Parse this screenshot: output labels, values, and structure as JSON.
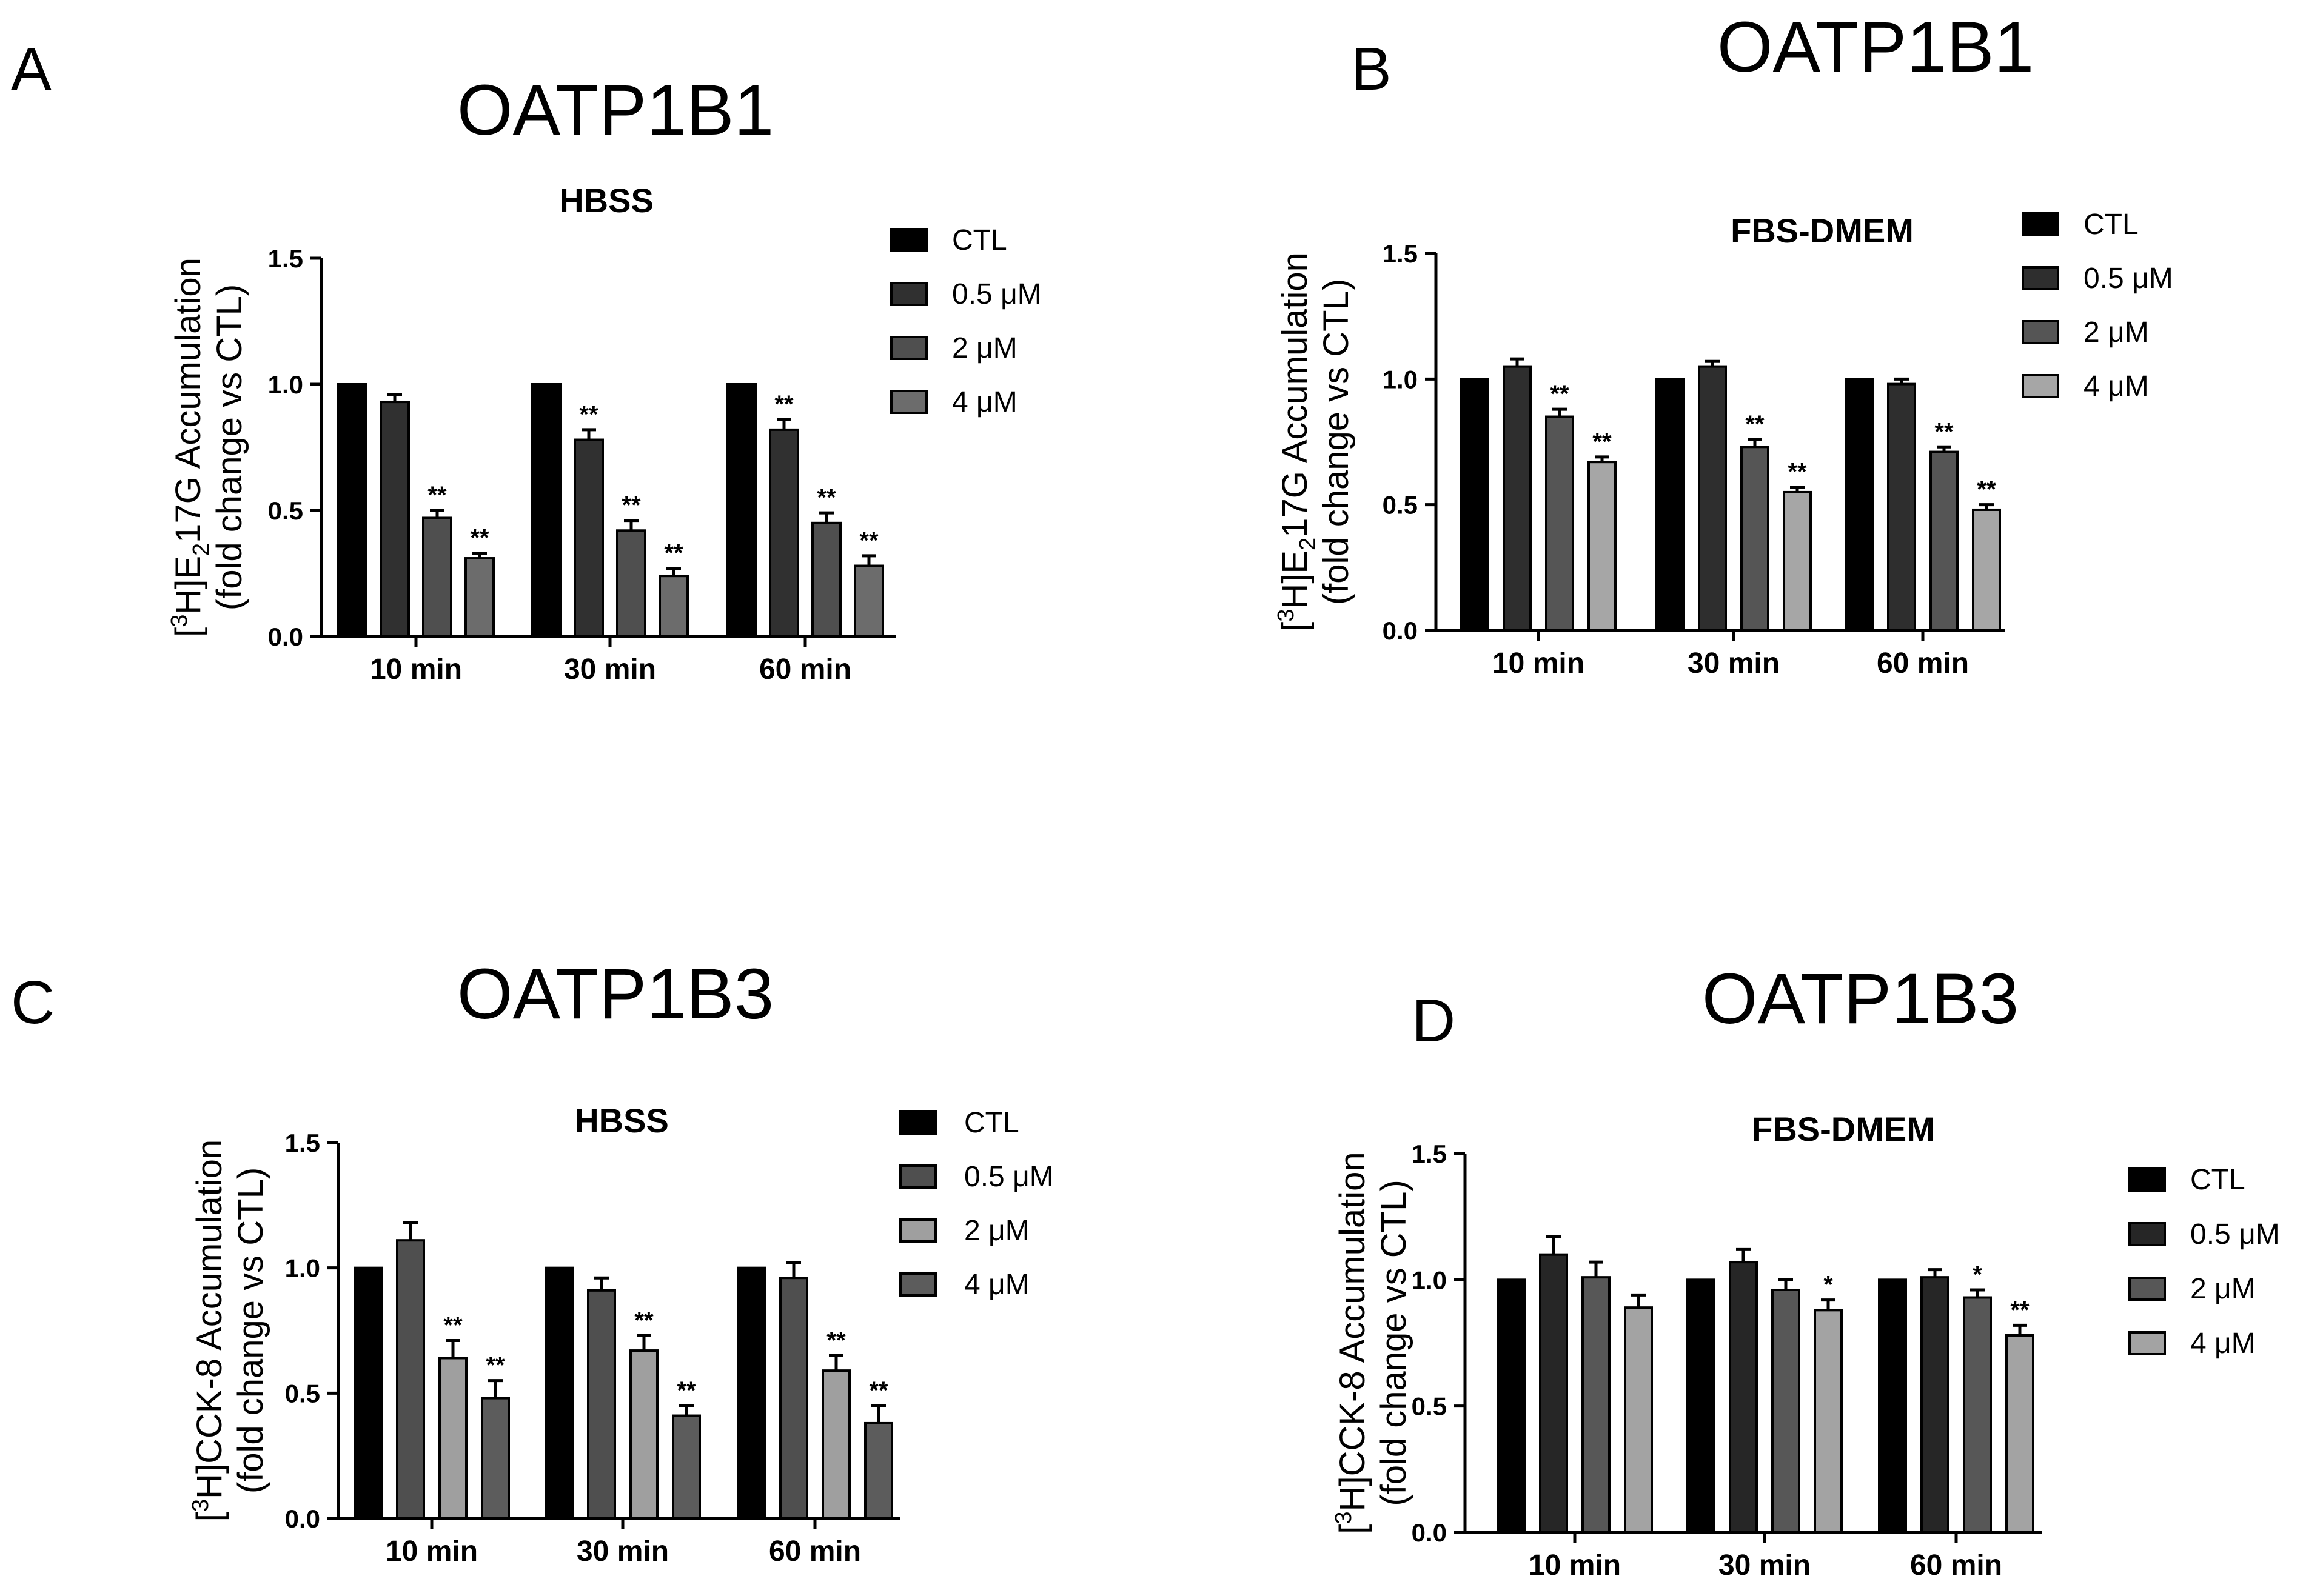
{
  "figure": {
    "unit_symbol": "μ"
  },
  "chart_data": [
    {
      "id": "A",
      "type": "bar",
      "panel_letter": "A",
      "panel_title": "OATP1B1",
      "title": "HBSS",
      "ylabel_line1": "[3H]E217G Accumulation",
      "ylabel_line2": "(fold change vs  CTL)",
      "ylim": [
        0,
        1.5
      ],
      "yticks": [
        "0.0",
        "0.5",
        "1.0",
        "1.5"
      ],
      "categories": [
        "10 min",
        "30 min",
        "60 min"
      ],
      "colors": [
        "#000000",
        "#303030",
        "#4f4f4f",
        "#6c6c6c"
      ],
      "series": [
        {
          "name": "CTL",
          "values": [
            1.0,
            1.0,
            1.0
          ],
          "errors": [
            0,
            0,
            0
          ],
          "sig": [
            "",
            "",
            ""
          ]
        },
        {
          "name": "0.5 μM",
          "values": [
            0.93,
            0.78,
            0.82
          ],
          "errors": [
            0.03,
            0.04,
            0.04
          ],
          "sig": [
            "",
            "**",
            "**"
          ]
        },
        {
          "name": "2 μM",
          "values": [
            0.47,
            0.42,
            0.45
          ],
          "errors": [
            0.03,
            0.04,
            0.04
          ],
          "sig": [
            "**",
            "**",
            "**"
          ]
        },
        {
          "name": "4 μM",
          "values": [
            0.31,
            0.24,
            0.28
          ],
          "errors": [
            0.02,
            0.03,
            0.04
          ],
          "sig": [
            "**",
            "**",
            "**"
          ]
        }
      ]
    },
    {
      "id": "B",
      "type": "bar",
      "panel_letter": "B",
      "panel_title": "OATP1B1",
      "title": "FBS-DMEM",
      "ylabel_line1": "[3H]E217G Accumulation",
      "ylabel_line2": "(fold change vs CTL)",
      "ylim": [
        0,
        1.5
      ],
      "yticks": [
        "0.0",
        "0.5",
        "1.0",
        "1.5"
      ],
      "categories": [
        "10 min",
        "30 min",
        "60 min"
      ],
      "colors": [
        "#000000",
        "#2e2e2e",
        "#555555",
        "#a6a6a6"
      ],
      "series": [
        {
          "name": "CTL",
          "values": [
            1.0,
            1.0,
            1.0
          ],
          "errors": [
            0,
            0,
            0
          ],
          "sig": [
            "",
            "",
            ""
          ]
        },
        {
          "name": "0.5 μM",
          "values": [
            1.05,
            1.05,
            0.98
          ],
          "errors": [
            0.03,
            0.02,
            0.02
          ],
          "sig": [
            "",
            "",
            ""
          ]
        },
        {
          "name": "2 μM",
          "values": [
            0.85,
            0.73,
            0.71
          ],
          "errors": [
            0.03,
            0.03,
            0.02
          ],
          "sig": [
            "**",
            "**",
            "**"
          ]
        },
        {
          "name": "4 μM",
          "values": [
            0.67,
            0.55,
            0.48
          ],
          "errors": [
            0.02,
            0.02,
            0.02
          ],
          "sig": [
            "**",
            "**",
            "**"
          ]
        }
      ]
    },
    {
      "id": "C",
      "type": "bar",
      "panel_letter": "C",
      "panel_title": "OATP1B3",
      "title": "HBSS",
      "ylabel_line1": "[3H]CCK-8 Accumulation",
      "ylabel_line2": "(fold change vs CTL)",
      "ylim": [
        0,
        1.5
      ],
      "yticks": [
        "0.0",
        "0.5",
        "1.0",
        "1.5"
      ],
      "categories": [
        "10 min",
        "30 min",
        "60 min"
      ],
      "colors": [
        "#000000",
        "#4f4f4f",
        "#9f9f9f",
        "#5c5c5c"
      ],
      "series": [
        {
          "name": "CTL",
          "values": [
            1.0,
            1.0,
            1.0
          ],
          "errors": [
            0,
            0,
            0
          ],
          "sig": [
            "",
            "",
            ""
          ]
        },
        {
          "name": "0.5 μM",
          "values": [
            1.11,
            0.91,
            0.96
          ],
          "errors": [
            0.07,
            0.05,
            0.06
          ],
          "sig": [
            "",
            "",
            ""
          ]
        },
        {
          "name": "2 μM",
          "values": [
            0.64,
            0.67,
            0.59
          ],
          "errors": [
            0.07,
            0.06,
            0.06
          ],
          "sig": [
            "**",
            "**",
            "**"
          ]
        },
        {
          "name": "4 μM",
          "values": [
            0.48,
            0.41,
            0.38
          ],
          "errors": [
            0.07,
            0.04,
            0.07
          ],
          "sig": [
            "**",
            "**",
            "**"
          ]
        }
      ]
    },
    {
      "id": "D",
      "type": "bar",
      "panel_letter": "D",
      "panel_title": "OATP1B3",
      "title": "FBS-DMEM",
      "ylabel_line1": "[3H]CCK-8 Accumulation",
      "ylabel_line2": "(fold change vs CTL)",
      "ylim": [
        0,
        1.5
      ],
      "yticks": [
        "0.0",
        "0.5",
        "1.0",
        "1.5"
      ],
      "categories": [
        "10 min",
        "30 min",
        "60 min"
      ],
      "colors": [
        "#000000",
        "#262626",
        "#575757",
        "#a3a3a3"
      ],
      "series": [
        {
          "name": "CTL",
          "values": [
            1.0,
            1.0,
            1.0
          ],
          "errors": [
            0,
            0,
            0
          ],
          "sig": [
            "",
            "",
            ""
          ]
        },
        {
          "name": "0.5 μM",
          "values": [
            1.1,
            1.07,
            1.01
          ],
          "errors": [
            0.07,
            0.05,
            0.03
          ],
          "sig": [
            "",
            "",
            ""
          ]
        },
        {
          "name": "2 μM",
          "values": [
            1.01,
            0.96,
            0.93
          ],
          "errors": [
            0.06,
            0.04,
            0.03
          ],
          "sig": [
            "",
            "",
            "*"
          ]
        },
        {
          "name": "4 μM",
          "values": [
            0.89,
            0.88,
            0.78
          ],
          "errors": [
            0.05,
            0.04,
            0.04
          ],
          "sig": [
            "",
            "*",
            "**"
          ]
        }
      ]
    }
  ]
}
